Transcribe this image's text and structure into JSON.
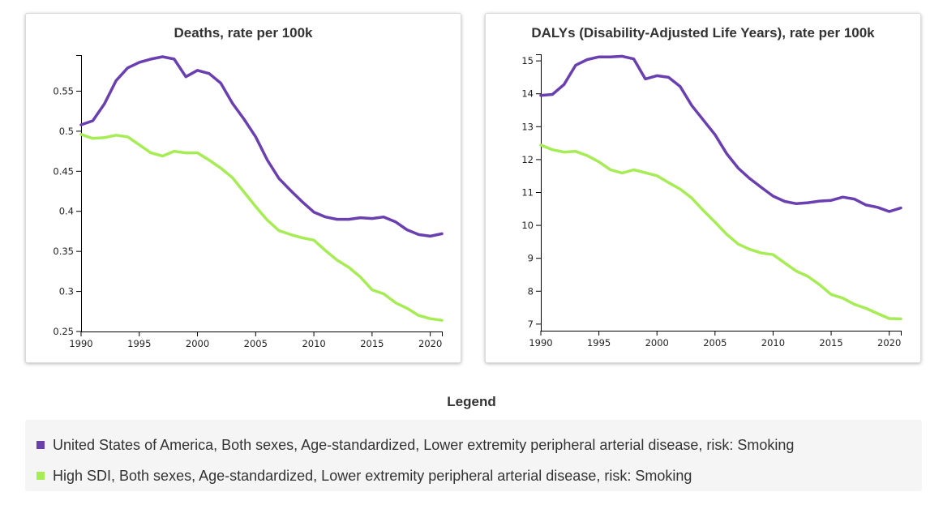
{
  "chart_data": [
    {
      "type": "line",
      "title": "Deaths, rate per 100k",
      "xlabel": "",
      "ylabel": "",
      "xlim": [
        1990,
        2021
      ],
      "ylim": [
        0.25,
        0.595
      ],
      "x_ticks": [
        1990,
        1995,
        2000,
        2005,
        2010,
        2015,
        2020
      ],
      "y_ticks": [
        0.25,
        0.3,
        0.35,
        0.4,
        0.45,
        0.5,
        0.55
      ],
      "y_tick_labels": [
        "0.25",
        "0.3",
        "0.35",
        "0.4",
        "0.45",
        "0.5",
        "0.55"
      ],
      "x": [
        1990,
        1991,
        1992,
        1993,
        1994,
        1995,
        1996,
        1997,
        1998,
        1999,
        2000,
        2001,
        2002,
        2003,
        2004,
        2005,
        2006,
        2007,
        2008,
        2009,
        2010,
        2011,
        2012,
        2013,
        2014,
        2015,
        2016,
        2017,
        2018,
        2019,
        2020,
        2021
      ],
      "series": [
        {
          "name": "United States of America, Both sexes, Age-standardized, Lower extremity peripheral arterial disease, risk: Smoking",
          "color": "#6a3fb0",
          "values": [
            0.508,
            0.513,
            0.534,
            0.563,
            0.579,
            0.586,
            0.59,
            0.593,
            0.59,
            0.568,
            0.576,
            0.572,
            0.56,
            0.535,
            0.515,
            0.493,
            0.464,
            0.441,
            0.426,
            0.412,
            0.399,
            0.393,
            0.39,
            0.39,
            0.392,
            0.391,
            0.393,
            0.387,
            0.377,
            0.371,
            0.369,
            0.372
          ]
        },
        {
          "name": "High SDI, Both sexes, Age-standardized, Lower extremity peripheral arterial disease, risk: Smoking",
          "color": "#a6ec54",
          "values": [
            0.496,
            0.491,
            0.492,
            0.495,
            0.493,
            0.483,
            0.473,
            0.469,
            0.475,
            0.473,
            0.473,
            0.464,
            0.454,
            0.442,
            0.424,
            0.406,
            0.389,
            0.376,
            0.371,
            0.367,
            0.364,
            0.351,
            0.339,
            0.33,
            0.318,
            0.302,
            0.297,
            0.286,
            0.279,
            0.27,
            0.266,
            0.264
          ]
        }
      ]
    },
    {
      "type": "line",
      "title": "DALYs (Disability-Adjusted Life Years), rate per 100k",
      "xlabel": "",
      "ylabel": "",
      "xlim": [
        1990,
        2021
      ],
      "ylim": [
        6.8,
        15.2
      ],
      "x_ticks": [
        1990,
        1995,
        2000,
        2005,
        2010,
        2015,
        2020
      ],
      "y_ticks": [
        7,
        8,
        9,
        10,
        11,
        12,
        13,
        14,
        15
      ],
      "y_tick_labels": [
        "7",
        "8",
        "9",
        "10",
        "11",
        "12",
        "13",
        "14",
        "15"
      ],
      "x": [
        1990,
        1991,
        1992,
        1993,
        1994,
        1995,
        1996,
        1997,
        1998,
        1999,
        2000,
        2001,
        2002,
        2003,
        2004,
        2005,
        2006,
        2007,
        2008,
        2009,
        2010,
        2011,
        2012,
        2013,
        2014,
        2015,
        2016,
        2017,
        2018,
        2019,
        2020,
        2021
      ],
      "series": [
        {
          "name": "United States of America, Both sexes, Age-standardized, Lower extremity peripheral arterial disease, risk: Smoking",
          "color": "#6a3fb0",
          "values": [
            13.95,
            13.98,
            14.28,
            14.87,
            15.04,
            15.12,
            15.12,
            15.14,
            15.06,
            14.45,
            14.55,
            14.5,
            14.22,
            13.64,
            13.2,
            12.76,
            12.18,
            11.74,
            11.42,
            11.15,
            10.89,
            10.73,
            10.66,
            10.69,
            10.74,
            10.76,
            10.86,
            10.8,
            10.62,
            10.55,
            10.42,
            10.53
          ]
        },
        {
          "name": "High SDI, Both sexes, Age-standardized, Lower extremity peripheral arterial disease, risk: Smoking",
          "color": "#a6ec54",
          "values": [
            12.44,
            12.3,
            12.23,
            12.25,
            12.12,
            11.93,
            11.69,
            11.59,
            11.69,
            11.6,
            11.51,
            11.3,
            11.1,
            10.83,
            10.45,
            10.1,
            9.73,
            9.43,
            9.27,
            9.16,
            9.11,
            8.86,
            8.61,
            8.45,
            8.2,
            7.9,
            7.79,
            7.6,
            7.48,
            7.32,
            7.17,
            7.16
          ]
        }
      ]
    }
  ],
  "legend": {
    "title": "Legend",
    "items": [
      {
        "label": "United States of America, Both sexes, Age-standardized, Lower extremity peripheral arterial disease, risk: Smoking",
        "color": "#6a3fb0"
      },
      {
        "label": "High SDI, Both sexes, Age-standardized, Lower extremity peripheral arterial disease, risk: Smoking",
        "color": "#a6ec54"
      }
    ]
  }
}
